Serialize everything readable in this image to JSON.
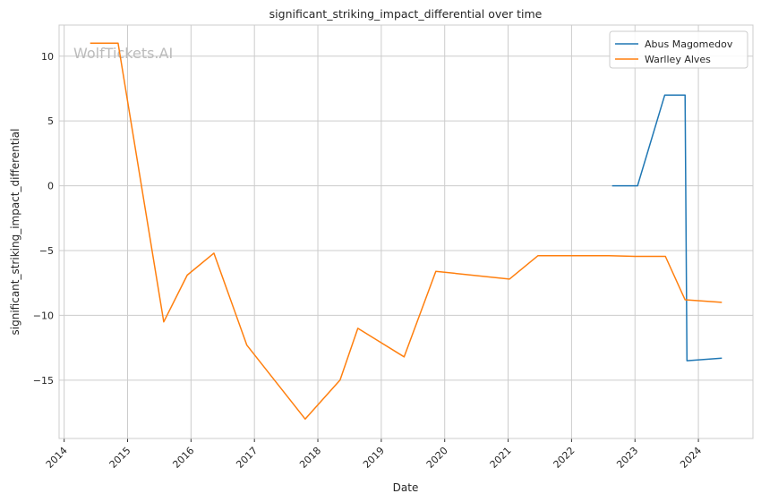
{
  "chart_data": {
    "type": "line",
    "title": "significant_striking_impact_differential over time",
    "xlabel": "Date",
    "ylabel": "significant_striking_impact_differential",
    "watermark": "WolfTickets.AI",
    "xlim": [
      2013.92,
      2024.86
    ],
    "ylim": [
      -19.5,
      12.4
    ],
    "xticks": [
      2014,
      2015,
      2016,
      2017,
      2018,
      2019,
      2020,
      2021,
      2022,
      2023,
      2024
    ],
    "yticks": [
      10,
      5,
      0,
      -5,
      -10,
      -15
    ],
    "ytick_labels": [
      "10",
      "5",
      "0",
      "−5",
      "−10",
      "−15"
    ],
    "grid": true,
    "legend_position": "top-right",
    "series": [
      {
        "name": "Abus Magomedov",
        "color": "#1f77b4",
        "x": [
          2022.64,
          2023.04,
          2023.47,
          2023.79,
          2023.82,
          2024.37
        ],
        "y": [
          0,
          0,
          7.0,
          7.0,
          -13.5,
          -13.3
        ]
      },
      {
        "name": "Warlley Alves",
        "color": "#ff7f0e",
        "x": [
          2014.41,
          2014.85,
          2015.57,
          2015.94,
          2016.36,
          2016.88,
          2017.8,
          2018.35,
          2018.63,
          2019.36,
          2019.86,
          2021.02,
          2021.47,
          2022.59,
          2023.0,
          2023.48,
          2023.79,
          2024.37
        ],
        "y": [
          11.0,
          11.0,
          -10.5,
          -6.9,
          -5.2,
          -12.3,
          -18.0,
          -15.0,
          -11.0,
          -13.2,
          -6.6,
          -7.2,
          -5.4,
          -5.4,
          -5.45,
          -5.45,
          -8.8,
          -9.0
        ]
      }
    ]
  }
}
